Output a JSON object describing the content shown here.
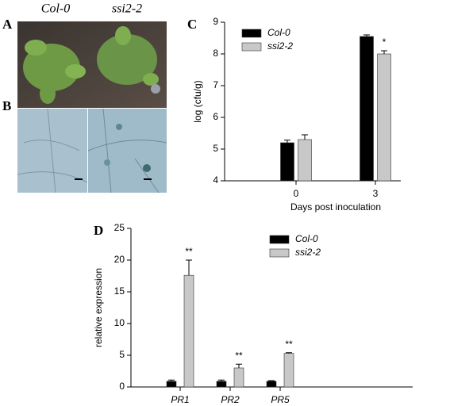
{
  "panels": {
    "a": "A",
    "b": "B",
    "c": "C",
    "d": "D"
  },
  "photo_labels": [
    "Col-0",
    "ssi2-2"
  ],
  "chart_data": [
    {
      "type": "bar",
      "ylabel": "log (cfu/g)",
      "xlabel": "Days post inoculation",
      "categories": [
        "0",
        "3"
      ],
      "ylim": [
        4,
        9
      ],
      "yticks": [
        4,
        5,
        6,
        7,
        8,
        9
      ],
      "series": [
        {
          "name": "Col-0",
          "color": "#000000",
          "values": [
            5.2,
            8.55
          ],
          "errors": [
            0.08,
            0.05
          ]
        },
        {
          "name": "ssi2-2",
          "color": "#c8c8c8",
          "values": [
            5.3,
            8.0
          ],
          "errors": [
            0.15,
            0.1
          ],
          "annotations": [
            null,
            "*"
          ]
        }
      ]
    },
    {
      "type": "bar",
      "ylabel": "relative expression",
      "categories": [
        "PR1",
        "PR2",
        "PR5"
      ],
      "ylim": [
        0,
        25
      ],
      "yticks": [
        0,
        5,
        10,
        15,
        20,
        25
      ],
      "series": [
        {
          "name": "Col-0",
          "color": "#000000",
          "values": [
            0.9,
            0.9,
            0.9
          ],
          "errors": [
            0.2,
            0.2,
            0.1
          ]
        },
        {
          "name": "ssi2-2",
          "color": "#c8c8c8",
          "values": [
            17.6,
            3.0,
            5.3
          ],
          "errors": [
            2.4,
            0.6,
            0.1
          ],
          "annotations": [
            "**",
            "**",
            "**"
          ]
        }
      ]
    }
  ]
}
